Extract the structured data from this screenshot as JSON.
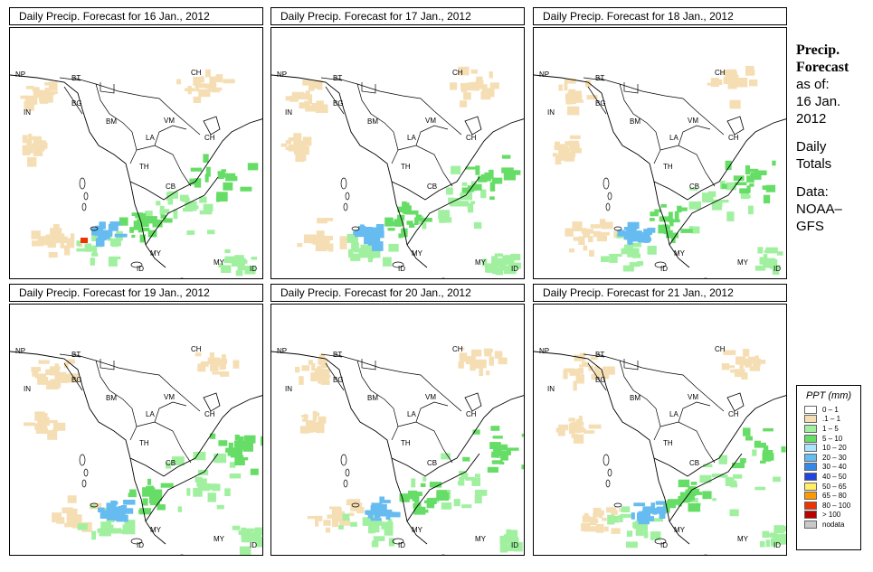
{
  "panels": [
    {
      "title": "Daily Precip. Forecast for  16 Jan., 2012"
    },
    {
      "title": "Daily Precip. Forecast for  17 Jan., 2012"
    },
    {
      "title": "Daily Precip. Forecast for  18 Jan., 2012"
    },
    {
      "title": "Daily Precip. Forecast for  19 Jan., 2012"
    },
    {
      "title": "Daily Precip. Forecast for  20 Jan., 2012"
    },
    {
      "title": "Daily Precip. Forecast for  21 Jan., 2012"
    }
  ],
  "map_labels": {
    "np": "NP",
    "bt": "BT",
    "bg": "BG",
    "in": "IN",
    "bm": "BM",
    "ch": "CH",
    "vm": "VM",
    "la": "LA",
    "th": "TH",
    "cb": "CB",
    "my": "MY",
    "my2": "MY",
    "id": "ID",
    "id2": "ID",
    "ch2": "CH"
  },
  "sidebar": {
    "title_line1": "Precip.",
    "title_line2": "Forecast",
    "asof": "as of:",
    "date_line1": "16 Jan.",
    "date_line2": "2012",
    "totals_line1": "Daily",
    "totals_line2": "Totals",
    "data_line1": "Data:",
    "data_line2": "NOAA–",
    "data_line3": "GFS"
  },
  "legend": {
    "title": "PPT (mm)",
    "entries": [
      {
        "label": "0 – 1",
        "color": "#ffffff"
      },
      {
        "label": ".1 – 1",
        "color": "#f5deb3"
      },
      {
        "label": "1 – 5",
        "color": "#a0f0a0"
      },
      {
        "label": "5 – 10",
        "color": "#66dd66"
      },
      {
        "label": "10 – 20",
        "color": "#aae4ff"
      },
      {
        "label": "20 – 30",
        "color": "#66bbf0"
      },
      {
        "label": "30 – 40",
        "color": "#3388e8"
      },
      {
        "label": "40 – 50",
        "color": "#2244dd"
      },
      {
        "label": "50 – 65",
        "color": "#ffee66"
      },
      {
        "label": "65 – 80",
        "color": "#ff9900"
      },
      {
        "label": "80 – 100",
        "color": "#ee3300"
      },
      {
        "label": "> 100",
        "color": "#bb0000"
      },
      {
        "label": "nodata",
        "color": "#c8c8c8"
      }
    ]
  }
}
